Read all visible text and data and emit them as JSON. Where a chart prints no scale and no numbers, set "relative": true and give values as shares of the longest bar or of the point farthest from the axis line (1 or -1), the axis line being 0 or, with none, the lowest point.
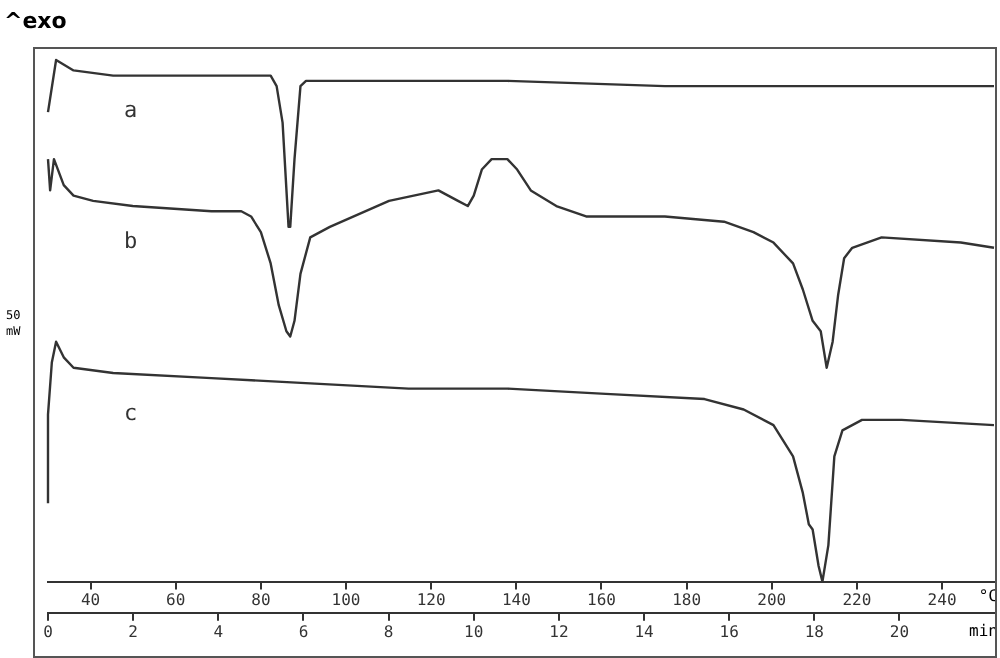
{
  "chart_data": {
    "type": "line",
    "relative": true,
    "annotations": [
      "^exo",
      "50 mW"
    ],
    "xlabel": "°C",
    "x2label": "min",
    "xlim": [
      30,
      252.2
    ],
    "xticks": [
      40,
      60,
      80,
      100,
      120,
      140,
      160,
      180,
      200,
      220,
      240
    ],
    "x2lim": [
      0,
      22.22
    ],
    "x2ticks": [
      0,
      2,
      4,
      6,
      8,
      10,
      12,
      14,
      16,
      18,
      20
    ],
    "grid": false,
    "legend": false,
    "marker": "none",
    "line_style": "solid",
    "series": [
      {
        "name": "a",
        "color": "#333333",
        "x": [
          30,
          31.9,
          36,
          45.3,
          68.4,
          82.3,
          83.7,
          85.1,
          86.5,
          86.9,
          87.9,
          89.3,
          90.6,
          114.7,
          137.9,
          174.9,
          216.6,
          252.2
        ],
        "values": [
          0.9,
          1,
          0.98,
          0.97,
          0.97,
          0.97,
          0.95,
          0.88,
          0.68,
          0.68,
          0.81,
          0.95,
          0.96,
          0.96,
          0.96,
          0.95,
          0.95,
          0.95
        ]
      },
      {
        "name": "b",
        "color": "#333333",
        "x": [
          30,
          30.5,
          31.4,
          33.7,
          36,
          40.6,
          49.9,
          68.4,
          75.4,
          77.7,
          80,
          82.3,
          84.2,
          86,
          86.9,
          87.9,
          89.3,
          91.6,
          96.2,
          110.1,
          121.7,
          124,
          126.3,
          128.6,
          130,
          131.9,
          134.2,
          137.9,
          140.2,
          143.4,
          149.4,
          156.4,
          174.9,
          188.8,
          195.7,
          200.4,
          205,
          207.3,
          209.6,
          211.5,
          212.9,
          214.3,
          215.6,
          217,
          218.9,
          225.8,
          244.4,
          252.2
        ],
        "values": [
          0.81,
          0.75,
          0.81,
          0.76,
          0.74,
          0.73,
          0.72,
          0.71,
          0.71,
          0.7,
          0.67,
          0.61,
          0.53,
          0.48,
          0.47,
          0.5,
          0.59,
          0.66,
          0.68,
          0.73,
          0.75,
          0.74,
          0.73,
          0.72,
          0.74,
          0.79,
          0.81,
          0.81,
          0.79,
          0.75,
          0.72,
          0.7,
          0.7,
          0.69,
          0.67,
          0.65,
          0.61,
          0.56,
          0.5,
          0.48,
          0.41,
          0.46,
          0.55,
          0.62,
          0.64,
          0.66,
          0.65,
          0.64
        ]
      },
      {
        "name": "c",
        "color": "#333333",
        "x": [
          30,
          30,
          30.9,
          31.9,
          33.7,
          36,
          45.3,
          68.4,
          91.6,
          114.7,
          137.9,
          161,
          184.2,
          193.4,
          200.4,
          205,
          207.3,
          208.7,
          209.6,
          211,
          211.9,
          213.3,
          214.7,
          216.6,
          221.2,
          230.5,
          252.2
        ],
        "values": [
          0.15,
          0.32,
          0.42,
          0.46,
          0.43,
          0.41,
          0.4,
          0.39,
          0.38,
          0.37,
          0.37,
          0.36,
          0.35,
          0.33,
          0.3,
          0.24,
          0.17,
          0.11,
          0.1,
          0.03,
          0,
          0.07,
          0.24,
          0.29,
          0.31,
          0.31,
          0.3
        ]
      }
    ]
  }
}
